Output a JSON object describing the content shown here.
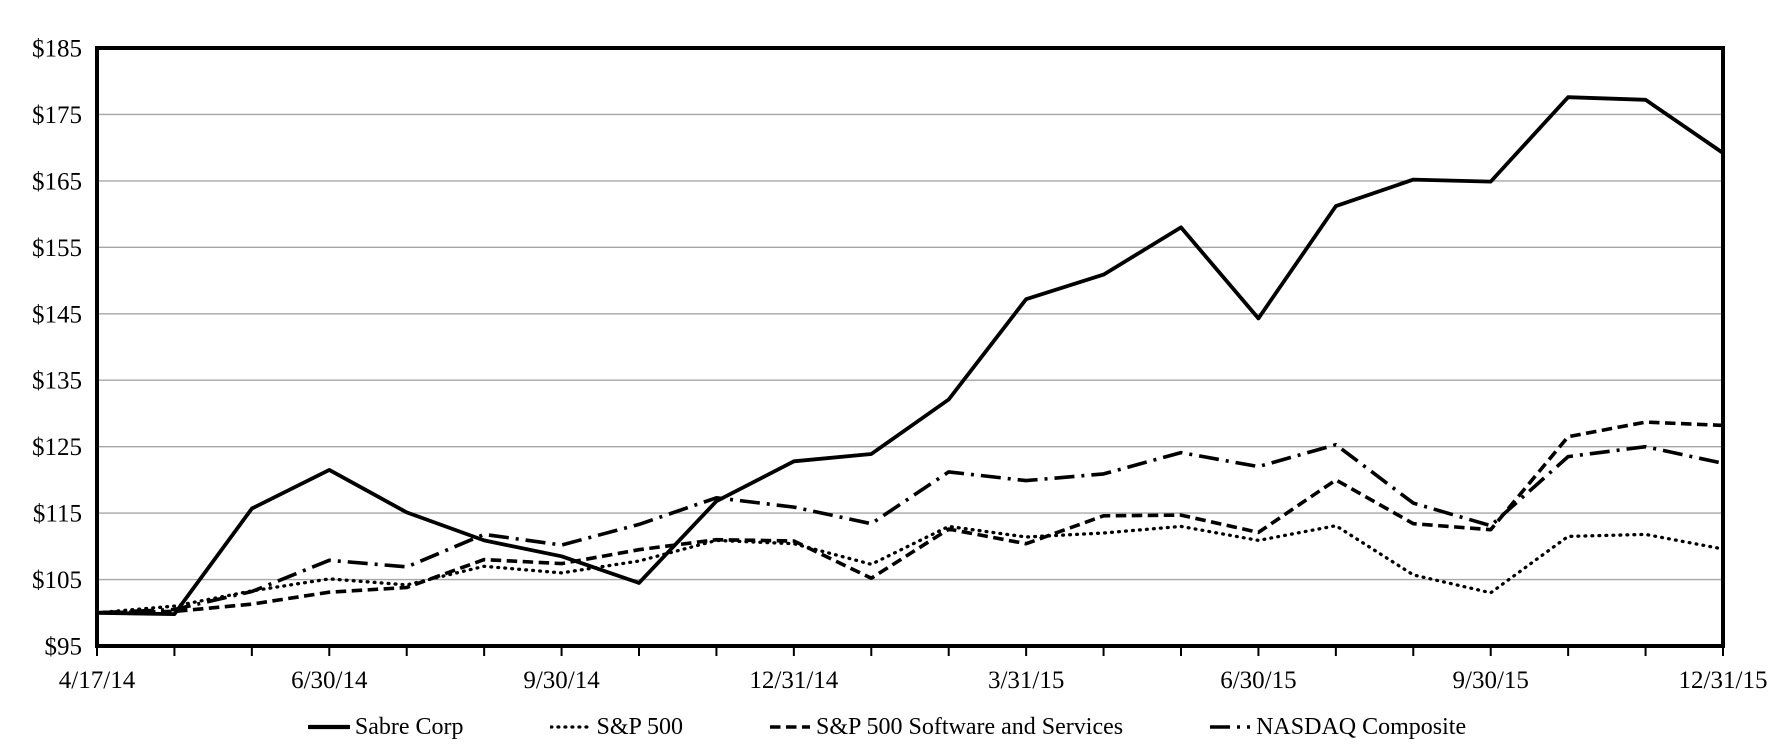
{
  "chart_data": {
    "type": "line",
    "title": "",
    "xlabel": "",
    "ylabel": "",
    "grid": true,
    "legend_position": "bottom",
    "background_color": "#ffffff",
    "grid_color": "#a6a6a6",
    "axis_color": "#000000",
    "line_color": "#000000",
    "y_axis": {
      "min": 95,
      "max": 185,
      "step": 10,
      "prefix": "$"
    },
    "y_tick_labels": [
      "$95",
      "$105",
      "$115",
      "$125",
      "$135",
      "$145",
      "$155",
      "$165",
      "$175",
      "$185"
    ],
    "categories": [
      "4/17/14",
      "4/30/14",
      "5/31/14",
      "6/30/14",
      "7/31/14",
      "8/31/14",
      "9/30/14",
      "10/31/14",
      "11/30/14",
      "12/31/14",
      "1/31/15",
      "2/28/15",
      "3/31/15",
      "4/30/15",
      "5/31/15",
      "6/30/15",
      "7/31/15",
      "8/31/15",
      "9/30/15",
      "10/31/15",
      "11/30/15",
      "12/31/15"
    ],
    "x_tick_labels": [
      "4/17/14",
      "6/30/14",
      "9/30/14",
      "12/31/14",
      "3/31/15",
      "6/30/15",
      "9/30/15",
      "12/31/15"
    ],
    "x_tick_indices": [
      0,
      3,
      6,
      9,
      12,
      15,
      18,
      21
    ],
    "series": [
      {
        "name": "Sabre Corp",
        "style": "solid",
        "values": [
          100,
          99.8,
          115.7,
          121.5,
          115.1,
          110.9,
          108.5,
          104.5,
          116.8,
          122.8,
          123.9,
          132.1,
          147.2,
          150.9,
          158.0,
          144.3,
          161.2,
          165.2,
          164.9,
          177.6,
          177.2,
          169.2
        ]
      },
      {
        "name": "S&P 500",
        "style": "dotted",
        "values": [
          100,
          101.0,
          103.3,
          105.1,
          104.2,
          107.0,
          106.0,
          107.8,
          110.9,
          110.4,
          107.3,
          113.0,
          111.4,
          112.0,
          113.0,
          110.9,
          113.1,
          105.7,
          103.0,
          111.5,
          111.8,
          109.6
        ]
      },
      {
        "name": "S&P 500 Software and Services",
        "style": "dashed",
        "values": [
          100,
          100.2,
          101.3,
          103.1,
          103.8,
          108.0,
          107.4,
          109.5,
          111.0,
          110.8,
          105.2,
          112.6,
          110.4,
          114.6,
          114.7,
          112.1,
          120.0,
          113.4,
          112.5,
          126.5,
          128.7,
          128.2
        ]
      },
      {
        "name": "NASDAQ Composite",
        "style": "dashdot",
        "values": [
          100,
          100.5,
          103.2,
          107.9,
          106.9,
          111.8,
          110.2,
          113.3,
          117.3,
          115.9,
          113.4,
          121.2,
          119.9,
          120.9,
          124.1,
          122.0,
          125.3,
          116.5,
          113.1,
          123.5,
          125.0,
          122.5
        ]
      }
    ]
  }
}
